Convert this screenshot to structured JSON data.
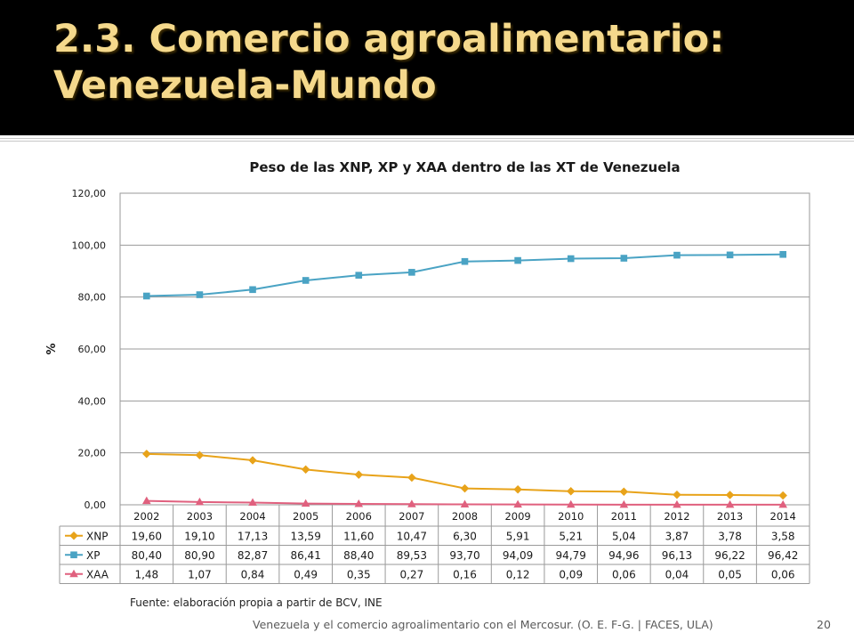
{
  "slide": {
    "title": "2.3. Comercio agroalimentario: Venezuela-Mundo",
    "source_note": "Fuente: elaboración propia a partir de BCV, INE",
    "footer": "Venezuela y el comercio agroalimentario con el Mercosur. (O. E. F-G. | FACES, ULA)",
    "page_number": "20"
  },
  "chart_data": {
    "type": "line",
    "title": "Peso de las XNP, XP y XAA dentro de las XT de Venezuela",
    "xlabel": "",
    "ylabel": "%",
    "ylim": [
      0,
      120
    ],
    "yticks": [
      "0,00",
      "20,00",
      "40,00",
      "60,00",
      "80,00",
      "100,00",
      "120,00"
    ],
    "ytick_values": [
      0,
      20,
      40,
      60,
      80,
      100,
      120
    ],
    "grid": true,
    "legend": "data-table",
    "categories": [
      "2002",
      "2003",
      "2004",
      "2005",
      "2006",
      "2007",
      "2008",
      "2009",
      "2010",
      "2011",
      "2012",
      "2013",
      "2014"
    ],
    "series": [
      {
        "name": "XNP",
        "color": "#e8a31a",
        "marker": "diamond",
        "values": [
          19.6,
          19.1,
          17.13,
          13.59,
          11.6,
          10.47,
          6.3,
          5.91,
          5.21,
          5.04,
          3.87,
          3.78,
          3.58
        ],
        "labels": [
          "19,60",
          "19,10",
          "17,13",
          "13,59",
          "11,60",
          "10,47",
          "6,30",
          "5,91",
          "5,21",
          "5,04",
          "3,87",
          "3,78",
          "3,58"
        ]
      },
      {
        "name": "XP",
        "color": "#4aa3c4",
        "marker": "square",
        "values": [
          80.4,
          80.9,
          82.87,
          86.41,
          88.4,
          89.53,
          93.7,
          94.09,
          94.79,
          94.96,
          96.13,
          96.22,
          96.42
        ],
        "labels": [
          "80,40",
          "80,90",
          "82,87",
          "86,41",
          "88,40",
          "89,53",
          "93,70",
          "94,09",
          "94,79",
          "94,96",
          "96,13",
          "96,22",
          "96,42"
        ]
      },
      {
        "name": "XAA",
        "color": "#e0607e",
        "marker": "triangle",
        "values": [
          1.48,
          1.07,
          0.84,
          0.49,
          0.35,
          0.27,
          0.16,
          0.12,
          0.09,
          0.06,
          0.04,
          0.05,
          0.06
        ],
        "labels": [
          "1,48",
          "1,07",
          "0,84",
          "0,49",
          "0,35",
          "0,27",
          "0,16",
          "0,12",
          "0,09",
          "0,06",
          "0,04",
          "0,05",
          "0,06"
        ]
      }
    ]
  }
}
